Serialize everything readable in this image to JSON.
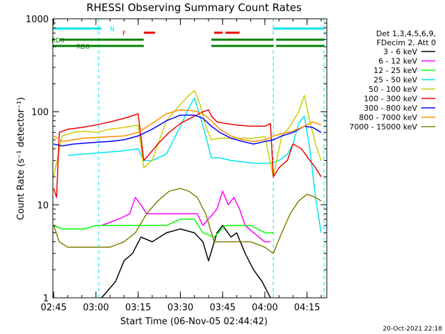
{
  "chart_data": {
    "type": "line",
    "title": "RHESSI Observing Summary Count Rates",
    "xlabel": "Start Time (06-Nov-05 02:44:42)",
    "ylabel": "Count Rate (s⁻¹ detector⁻¹)",
    "yscale": "log",
    "ylim": [
      1,
      1000
    ],
    "xlim": [
      "02:44:42",
      "04:22:00"
    ],
    "x_ticks": [
      "02:45",
      "03:00",
      "03:15",
      "03:30",
      "03:45",
      "04:00",
      "04:15"
    ],
    "y_ticks": [
      "1",
      "10",
      "100",
      "1000"
    ],
    "legend_header": [
      "Det 1,3,4,5,6,9,",
      "FDecim 2, Att 0"
    ],
    "legend_position": "right",
    "footer": "20-Oct-2021 22:18",
    "flags": [
      {
        "label": "N",
        "color": "#00e5ee",
        "intervals": [
          [
            "02:44:42",
            "03:02"
          ],
          [
            "04:03",
            "04:21"
          ]
        ]
      },
      {
        "label": "F",
        "color": "#ee0000",
        "intervals": [
          [
            "03:17",
            "03:21"
          ],
          [
            "03:42",
            "03:45"
          ],
          [
            "03:46",
            "03:51"
          ]
        ]
      },
      {
        "label": "RD0",
        "color": "#008000",
        "intervals": [
          [
            "02:47",
            "03:17"
          ],
          [
            "03:41",
            "04:03"
          ],
          [
            "04:04",
            "04:21"
          ]
        ]
      },
      {
        "label": "RD6",
        "color": "#008000",
        "intervals": [
          [
            "02:44:42",
            "03:17"
          ],
          [
            "03:41",
            "04:03"
          ],
          [
            "04:04",
            "04:21"
          ]
        ]
      }
    ],
    "saa_markers": [
      "03:01",
      "04:03",
      "04:21"
    ],
    "series": [
      {
        "name": "3 - 6 keV",
        "color": "#000000",
        "x": [
          "03:02",
          "03:07",
          "03:10",
          "03:13",
          "03:16",
          "03:20",
          "03:25",
          "03:30",
          "03:35",
          "03:38",
          "03:40",
          "03:43",
          "03:45",
          "03:48",
          "03:50",
          "03:53",
          "03:56",
          "03:59",
          "04:02"
        ],
        "y": [
          1,
          1.5,
          2.5,
          3,
          4.5,
          4,
          5,
          5.5,
          5,
          4,
          2.5,
          5,
          6,
          4.5,
          5,
          3,
          2,
          1.5,
          1
        ]
      },
      {
        "name": "6 - 12 keV",
        "color": "#ff00ff",
        "x": [
          "03:02",
          "03:08",
          "03:12",
          "03:14",
          "03:16",
          "03:18",
          "03:22",
          "03:27",
          "03:32",
          "03:36",
          "03:38",
          "03:40",
          "03:43",
          "03:45",
          "03:47",
          "03:49",
          "03:51",
          "03:53",
          "03:56",
          "04:00",
          "04:02"
        ],
        "y": [
          6,
          7,
          8,
          12,
          10,
          8,
          8,
          8,
          8,
          8,
          6,
          7,
          9,
          14,
          10,
          12,
          9,
          6,
          5,
          4,
          4
        ]
      },
      {
        "name": "12 - 25 keV",
        "color": "#00ff00",
        "x": [
          "02:45",
          "02:48",
          "02:52",
          "02:56",
          "03:00",
          "03:05",
          "03:10",
          "03:15",
          "03:20",
          "03:25",
          "03:30",
          "03:35",
          "03:38",
          "03:42",
          "03:46",
          "03:50",
          "03:55",
          "04:00",
          "04:03"
        ],
        "y": [
          6,
          5.5,
          5.5,
          5.5,
          6,
          6,
          6,
          6,
          6,
          6,
          7,
          7,
          5,
          4.5,
          6,
          6,
          6,
          5,
          5
        ]
      },
      {
        "name": "25 - 50 keV",
        "color": "#00e5ee",
        "x": [
          "02:50",
          "02:55",
          "03:00",
          "03:05",
          "03:10",
          "03:15",
          "03:17",
          "03:20",
          "03:25",
          "03:30",
          "03:33",
          "03:35",
          "03:37",
          "03:39",
          "03:41",
          "03:44",
          "03:48",
          "03:52",
          "03:56",
          "04:00",
          "04:02",
          "04:05",
          "04:08",
          "04:10",
          "04:12",
          "04:14",
          "04:16",
          "04:18",
          "04:20"
        ],
        "y": [
          34,
          35,
          36,
          37,
          38,
          40,
          30,
          30,
          35,
          70,
          110,
          140,
          90,
          55,
          32,
          32,
          30,
          29,
          28,
          28,
          28,
          30,
          35,
          45,
          75,
          90,
          40,
          12,
          5
        ]
      },
      {
        "name": "50 - 100 keV",
        "color": "#cccc00",
        "x": [
          "02:45",
          "02:48",
          "02:52",
          "02:56",
          "03:00",
          "03:05",
          "03:10",
          "03:15",
          "03:17",
          "03:20",
          "03:25",
          "03:30",
          "03:33",
          "03:35",
          "03:37",
          "03:39",
          "03:41",
          "03:44",
          "03:48",
          "03:52",
          "03:56",
          "04:00",
          "04:03",
          "04:06",
          "04:09",
          "04:12",
          "04:14",
          "04:16",
          "04:18",
          "04:20"
        ],
        "y": [
          20,
          55,
          60,
          62,
          60,
          65,
          68,
          72,
          25,
          30,
          80,
          120,
          150,
          170,
          120,
          70,
          50,
          52,
          52,
          52,
          52,
          54,
          20,
          55,
          70,
          100,
          150,
          80,
          45,
          30
        ]
      },
      {
        "name": "100 - 300 keV",
        "color": "#ee0000",
        "x": [
          "02:45",
          "02:46",
          "02:47",
          "02:50",
          "02:55",
          "03:00",
          "03:05",
          "03:10",
          "03:15",
          "03:17",
          "03:19",
          "03:22",
          "03:26",
          "03:30",
          "03:35",
          "03:38",
          "03:40",
          "03:41",
          "03:43",
          "03:46",
          "03:50",
          "03:55",
          "04:00",
          "04:02",
          "04:03",
          "04:05",
          "04:08",
          "04:10",
          "04:13",
          "04:16",
          "04:18",
          "04:20"
        ],
        "y": [
          15,
          12,
          60,
          65,
          68,
          72,
          78,
          85,
          95,
          30,
          35,
          45,
          60,
          75,
          90,
          100,
          105,
          90,
          78,
          75,
          72,
          70,
          70,
          75,
          20,
          25,
          30,
          45,
          40,
          30,
          25,
          20
        ]
      },
      {
        "name": "300 - 800 keV",
        "color": "#0000ff",
        "x": [
          "02:45",
          "02:48",
          "02:52",
          "02:56",
          "03:00",
          "03:05",
          "03:10",
          "03:15",
          "03:20",
          "03:25",
          "03:30",
          "03:35",
          "03:38",
          "03:41",
          "03:44",
          "03:48",
          "03:52",
          "03:56",
          "04:00",
          "04:03",
          "04:06",
          "04:10",
          "04:14",
          "04:17",
          "04:20"
        ],
        "y": [
          45,
          43,
          45,
          46,
          47,
          48,
          50,
          55,
          65,
          80,
          92,
          92,
          85,
          70,
          60,
          52,
          48,
          45,
          48,
          50,
          55,
          60,
          70,
          68,
          60
        ]
      },
      {
        "name": "800 - 7000 keV",
        "color": "#ff8c00",
        "x": [
          "02:45",
          "02:48",
          "02:52",
          "02:56",
          "03:00",
          "03:05",
          "03:10",
          "03:15",
          "03:20",
          "03:25",
          "03:30",
          "03:35",
          "03:38",
          "03:41",
          "03:44",
          "03:48",
          "03:52",
          "03:56",
          "04:00",
          "04:03",
          "04:06",
          "04:10",
          "04:14",
          "04:17",
          "04:20"
        ],
        "y": [
          55,
          48,
          50,
          52,
          53,
          54,
          55,
          60,
          75,
          95,
          105,
          102,
          95,
          80,
          65,
          55,
          50,
          48,
          50,
          55,
          58,
          62,
          70,
          78,
          72
        ]
      },
      {
        "name": "7000 - 15000 keV",
        "color": "#808000",
        "x": [
          "02:45",
          "02:47",
          "02:50",
          "02:55",
          "03:00",
          "03:05",
          "03:10",
          "03:14",
          "03:18",
          "03:22",
          "03:26",
          "03:30",
          "03:33",
          "03:36",
          "03:39",
          "03:42",
          "03:46",
          "03:50",
          "03:55",
          "04:00",
          "04:03",
          "04:06",
          "04:09",
          "04:12",
          "04:15",
          "04:18",
          "04:20"
        ],
        "y": [
          6,
          4,
          3.5,
          3.5,
          3.5,
          3.5,
          4,
          5,
          8,
          11,
          14,
          15,
          14,
          12,
          8,
          4,
          4,
          4,
          4,
          3.5,
          3,
          5,
          8,
          11,
          13,
          12,
          11
        ]
      }
    ]
  }
}
